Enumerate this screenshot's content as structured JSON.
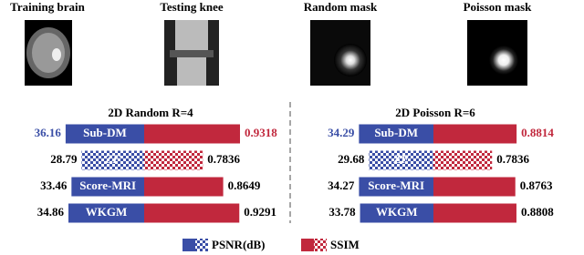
{
  "image_titles": [
    "Training brain",
    "Testing knee",
    "Random mask",
    "Poisson mask"
  ],
  "chart_data": [
    {
      "type": "bar",
      "title": "2D Random R=4",
      "categories": [
        "Sub-DM",
        "ZF",
        "Score-MRI",
        "WKGM"
      ],
      "fill_style": [
        "solid",
        "checker",
        "solid",
        "solid"
      ],
      "highlight": 0,
      "series": [
        {
          "name": "PSNR(dB)",
          "color": "#3a4ea6",
          "values": [
            36.16,
            28.79,
            33.46,
            34.86
          ]
        },
        {
          "name": "SSIM",
          "color": "#c1283d",
          "values": [
            0.9318,
            0.7836,
            0.8649,
            0.9291
          ]
        }
      ],
      "xlim": [
        0,
        42
      ],
      "x2lim": [
        0.55,
        0.95
      ]
    },
    {
      "type": "bar",
      "title": "2D Poisson R=6",
      "categories": [
        "Sub-DM",
        "ZF",
        "Score-MRI",
        "WKGM"
      ],
      "fill_style": [
        "solid",
        "checker",
        "solid",
        "solid"
      ],
      "highlight": 0,
      "series": [
        {
          "name": "PSNR(dB)",
          "color": "#3a4ea6",
          "values": [
            34.29,
            29.68,
            34.27,
            33.78
          ]
        },
        {
          "name": "SSIM",
          "color": "#c1283d",
          "values": [
            0.8814,
            0.7836,
            0.8763,
            0.8808
          ]
        }
      ],
      "xlim": [
        0,
        42
      ],
      "x2lim": [
        0.55,
        0.95
      ]
    }
  ]
}
